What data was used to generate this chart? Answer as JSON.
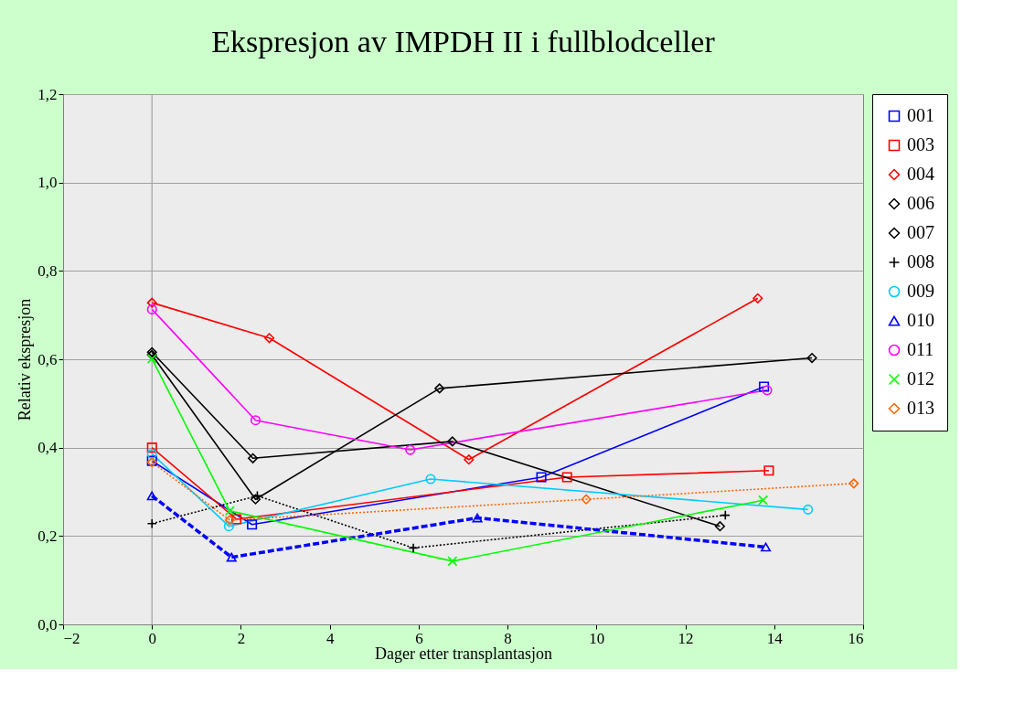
{
  "chart_data": {
    "type": "line",
    "title": "Ekspresjon av IMPDH II i fullblodceller",
    "xlabel": "Dager etter transplantasjon",
    "ylabel": "Relativ ekspresjon",
    "xlim": [
      -2,
      16
    ],
    "xticks": [
      -2,
      0,
      2,
      4,
      6,
      8,
      10,
      12,
      14,
      16
    ],
    "ylim": [
      0,
      1.2
    ],
    "yticks": [
      {
        "value": 0,
        "label": "0,0"
      },
      {
        "value": 0.2,
        "label": "0,2"
      },
      {
        "value": 0.4,
        "label": "0,4"
      },
      {
        "value": 0.6,
        "label": "0,6"
      },
      {
        "value": 0.8,
        "label": "0,8"
      },
      {
        "value": 1.0,
        "label": "1,0"
      },
      {
        "value": 1.2,
        "label": "1,2"
      }
    ],
    "grid": "y",
    "legend": "right",
    "ref_lines": [
      {
        "axis": "x",
        "value": 0,
        "color": "#a0a0a0"
      }
    ],
    "series": [
      {
        "name": "001",
        "color": "#0000ff",
        "marker": "square",
        "line_style": "solid",
        "x": [
          0,
          2.25,
          8.76,
          13.77
        ],
        "values": [
          0.37,
          0.226,
          0.333,
          0.538
        ]
      },
      {
        "name": "003",
        "color": "#ff0000",
        "marker": "square",
        "line_style": "solid",
        "x": [
          0,
          1.9,
          9.34,
          13.88
        ],
        "values": [
          0.4,
          0.238,
          0.333,
          0.348
        ]
      },
      {
        "name": "004",
        "color": "#ff0000",
        "marker": "diamond",
        "line_style": "solid",
        "x": [
          0,
          2.64,
          7.13,
          13.63
        ],
        "values": [
          0.728,
          0.648,
          0.373,
          0.738
        ]
      },
      {
        "name": "006",
        "color": "#000000",
        "marker": "diamond",
        "line_style": "solid",
        "x": [
          0,
          2.33,
          6.47,
          14.85
        ],
        "values": [
          0.61,
          0.283,
          0.534,
          0.603
        ]
      },
      {
        "name": "007",
        "color": "#000000",
        "marker": "diamond",
        "line_style": "solid",
        "x": [
          0,
          2.27,
          6.76,
          12.78
        ],
        "values": [
          0.616,
          0.376,
          0.414,
          0.222
        ]
      },
      {
        "name": "008",
        "color": "#000000",
        "marker": "cross",
        "line_style": "dotted",
        "x": [
          0,
          2.37,
          5.88,
          12.9
        ],
        "values": [
          0.228,
          0.291,
          0.173,
          0.247
        ]
      },
      {
        "name": "009",
        "color": "#00ccff",
        "marker": "circle",
        "line_style": "solid",
        "x": [
          0,
          1.73,
          6.27,
          14.76
        ],
        "values": [
          0.386,
          0.222,
          0.329,
          0.26
        ]
      },
      {
        "name": "010",
        "color": "#0000ff",
        "marker": "triangle",
        "line_style": "dashed",
        "x": [
          0,
          1.79,
          7.32,
          13.81
        ],
        "values": [
          0.291,
          0.152,
          0.241,
          0.175
        ]
      },
      {
        "name": "011",
        "color": "#ff00ff",
        "marker": "circle",
        "line_style": "solid",
        "x": [
          0,
          2.33,
          5.81,
          13.84
        ],
        "values": [
          0.713,
          0.462,
          0.395,
          0.53
        ]
      },
      {
        "name": "012",
        "color": "#00ff00",
        "marker": "x",
        "line_style": "solid",
        "x": [
          0,
          1.75,
          6.76,
          13.75
        ],
        "values": [
          0.601,
          0.257,
          0.143,
          0.281
        ]
      },
      {
        "name": "013",
        "color": "#ff6600",
        "marker": "diamond",
        "line_style": "dotted",
        "x": [
          0,
          1.75,
          9.77,
          15.79
        ],
        "values": [
          0.367,
          0.236,
          0.283,
          0.319
        ]
      }
    ]
  }
}
